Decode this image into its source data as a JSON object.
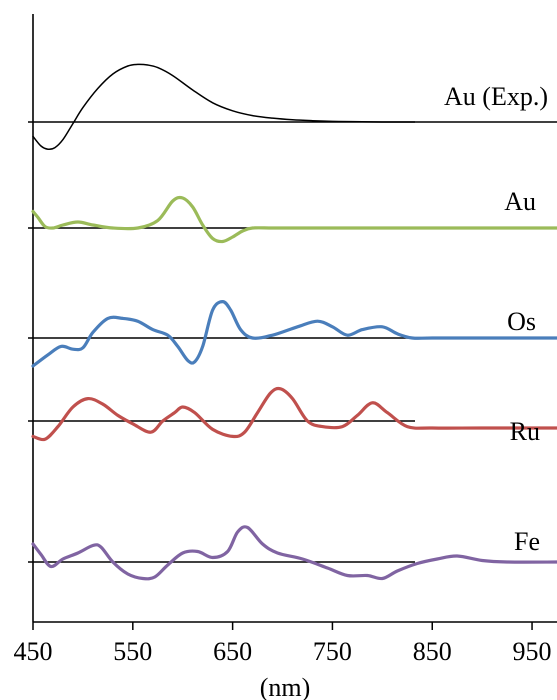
{
  "chart_data": {
    "type": "line",
    "xlabel": "(nm)",
    "xlim": [
      450,
      975
    ],
    "x_ticks": [
      450,
      550,
      650,
      750,
      850,
      950
    ],
    "grid": false,
    "series": [
      {
        "name": "Au (Exp.)",
        "color": "#000000",
        "baseline": true,
        "x": [
          450,
          458,
          465,
          472,
          480,
          490,
          500,
          515,
          530,
          545,
          555,
          565,
          575,
          590,
          610,
          630,
          650,
          670,
          690,
          710,
          730,
          750,
          770,
          800,
          850,
          900,
          975
        ],
        "y": [
          -0.45,
          -0.75,
          -0.85,
          -0.8,
          -0.55,
          -0.05,
          0.45,
          1.05,
          1.5,
          1.75,
          1.8,
          1.78,
          1.7,
          1.45,
          1.0,
          0.6,
          0.35,
          0.2,
          0.12,
          0.07,
          0.04,
          0.02,
          0.01,
          0.0,
          0.0,
          0.0,
          0.0
        ]
      },
      {
        "name": "Au",
        "color": "#9BBB59",
        "baseline": true,
        "x": [
          450,
          455,
          462,
          470,
          480,
          495,
          510,
          530,
          555,
          575,
          590,
          600,
          610,
          620,
          630,
          640,
          650,
          660,
          670,
          690,
          720,
          800,
          900,
          975
        ],
        "y": [
          0.55,
          0.35,
          0.05,
          0.0,
          0.1,
          0.2,
          0.1,
          0.0,
          0.0,
          0.25,
          0.9,
          1.0,
          0.7,
          0.1,
          -0.35,
          -0.45,
          -0.3,
          -0.1,
          0.0,
          0.0,
          0.0,
          0.0,
          0.0,
          0.0
        ]
      },
      {
        "name": "Os",
        "color": "#4A7EBB",
        "baseline": true,
        "x": [
          450,
          465,
          478,
          490,
          500,
          510,
          525,
          540,
          555,
          570,
          585,
          595,
          605,
          612,
          620,
          630,
          640,
          648,
          658,
          670,
          690,
          715,
          735,
          750,
          765,
          780,
          800,
          815,
          830,
          850,
          900,
          975
        ],
        "y": [
          -1.0,
          -0.6,
          -0.3,
          -0.4,
          -0.35,
          0.2,
          0.7,
          0.7,
          0.6,
          0.3,
          0.1,
          -0.3,
          -0.8,
          -0.85,
          -0.3,
          1.0,
          1.3,
          1.0,
          0.3,
          0.0,
          0.1,
          0.4,
          0.6,
          0.4,
          0.1,
          0.3,
          0.4,
          0.15,
          0.0,
          0.0,
          0.0,
          0.0
        ]
      },
      {
        "name": "Ru",
        "color": "#C0504D",
        "baseline": true,
        "x": [
          450,
          462,
          475,
          490,
          505,
          520,
          535,
          550,
          568,
          580,
          592,
          600,
          612,
          630,
          650,
          662,
          675,
          688,
          698,
          710,
          725,
          740,
          760,
          775,
          790,
          805,
          825,
          850,
          900,
          975
        ],
        "y": [
          -0.55,
          -0.65,
          -0.2,
          0.5,
          0.8,
          0.6,
          0.2,
          -0.1,
          -0.4,
          0.0,
          0.3,
          0.5,
          0.3,
          -0.3,
          -0.55,
          -0.4,
          0.3,
          1.0,
          1.15,
          0.8,
          0.0,
          -0.2,
          -0.2,
          0.2,
          0.65,
          0.3,
          -0.2,
          -0.25,
          -0.25,
          -0.25
        ]
      },
      {
        "name": "Fe",
        "color": "#8064A2",
        "baseline": true,
        "x": [
          450,
          458,
          468,
          480,
          495,
          510,
          518,
          530,
          545,
          560,
          572,
          585,
          600,
          615,
          630,
          645,
          655,
          665,
          680,
          695,
          720,
          745,
          765,
          785,
          800,
          815,
          835,
          855,
          875,
          900,
          925,
          975
        ],
        "y": [
          0.6,
          0.25,
          -0.15,
          0.1,
          0.3,
          0.55,
          0.5,
          0.0,
          -0.4,
          -0.55,
          -0.5,
          -0.1,
          0.3,
          0.35,
          0.15,
          0.35,
          1.0,
          1.15,
          0.6,
          0.3,
          0.1,
          -0.2,
          -0.45,
          -0.45,
          -0.55,
          -0.3,
          -0.05,
          0.1,
          0.2,
          0.05,
          0.0,
          0.0
        ]
      }
    ]
  }
}
